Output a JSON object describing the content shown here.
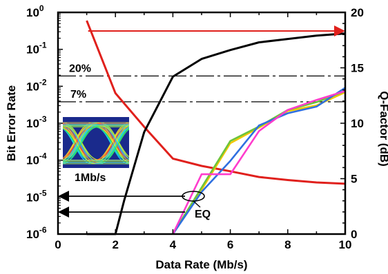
{
  "chart_data": {
    "type": "line",
    "xlabel": "Data Rate (Mb/s)",
    "ylabel_left": "Bit Error Rate",
    "ylabel_right": "Q-Factor (dB)",
    "x_ticks": [
      "0",
      "2",
      "4",
      "6",
      "8",
      "10"
    ],
    "y_left_ticks": [
      {
        "base": "10",
        "exp": "-6"
      },
      {
        "base": "10",
        "exp": "-5"
      },
      {
        "base": "10",
        "exp": "-4"
      },
      {
        "base": "10",
        "exp": "-3"
      },
      {
        "base": "10",
        "exp": "-2"
      },
      {
        "base": "10",
        "exp": "-1"
      },
      {
        "base": "10",
        "exp": "0"
      }
    ],
    "y_right_ticks": [
      "0",
      "5",
      "10",
      "15",
      "20"
    ],
    "xlim": [
      0,
      10
    ],
    "ylim_left_log10": [
      -6,
      0
    ],
    "ylim_right": [
      0,
      20
    ],
    "thresholds": [
      {
        "label": "20%",
        "ber": 0.019
      },
      {
        "label": "7%",
        "ber": 0.0038
      }
    ],
    "series": [
      {
        "axis": "left",
        "color": "#e0201c",
        "x": [
          1,
          2,
          3,
          4,
          5,
          6,
          7,
          8,
          9,
          10
        ],
        "y": [
          0.6,
          0.0065,
          0.0008,
          0.00011,
          7e-05,
          5e-05,
          3.5e-05,
          2.9e-05,
          2.5e-05,
          2.3e-05
        ]
      },
      {
        "axis": "right",
        "color": "#000000",
        "x": [
          1,
          2,
          2.3,
          3,
          4,
          5,
          6,
          7,
          8,
          9,
          10
        ],
        "y": [
          0,
          0,
          3,
          9.2,
          14.2,
          15.8,
          16.6,
          17.3,
          17.6,
          17.9,
          18.1
        ]
      },
      {
        "axis": "right",
        "color": "#f2c800",
        "x": [
          4,
          5,
          6,
          7,
          8,
          9,
          10
        ],
        "y": [
          0,
          4,
          8.2,
          9.6,
          11.1,
          11.6,
          12.8
        ]
      },
      {
        "axis": "right",
        "color": "#6cc43c",
        "x": [
          4,
          5,
          6,
          7,
          8,
          9,
          10
        ],
        "y": [
          0,
          4.2,
          8.4,
          9.7,
          11.2,
          11.9,
          12.9
        ]
      },
      {
        "axis": "right",
        "color": "#2e6fe0",
        "x": [
          4,
          5,
          6,
          7,
          8,
          9,
          10
        ],
        "y": [
          0,
          3.8,
          6.6,
          9.8,
          10.9,
          11.5,
          13.2
        ]
      },
      {
        "axis": "right",
        "color": "#ff3ccc",
        "x": [
          4,
          5,
          6,
          7,
          8,
          9,
          10
        ],
        "y": [
          0,
          5.4,
          5.4,
          9.3,
          11.2,
          12.1,
          12.9
        ]
      }
    ],
    "annotations": {
      "eye_label": "1Mb/s",
      "eq_label": "EQ"
    }
  }
}
